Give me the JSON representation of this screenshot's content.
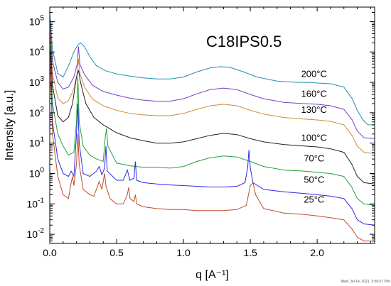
{
  "chart_data": {
    "type": "line",
    "title": "C18IPS0.5",
    "xlabel": "q [A⁻¹]",
    "ylabel": "Intensity [a.u.]",
    "xlim": [
      0,
      2.43
    ],
    "ylim": [
      0.005,
      300000
    ],
    "yscale": "log",
    "grid": false,
    "legend": "inline labels at right",
    "x_ticks": [
      {
        "v": 0,
        "label": "0.0"
      },
      {
        "v": 0.5,
        "label": "0.5"
      },
      {
        "v": 1.0,
        "label": "1.0"
      },
      {
        "v": 1.5,
        "label": "1.5"
      },
      {
        "v": 2.0,
        "label": "2.0"
      }
    ],
    "y_ticks": [
      {
        "exp": -2,
        "label": "10-2"
      },
      {
        "exp": -1,
        "label": "10-1"
      },
      {
        "exp": 0,
        "label": "10 0"
      },
      {
        "exp": 1,
        "label": "10 1"
      },
      {
        "exp": 2,
        "label": "10 2"
      },
      {
        "exp": 3,
        "label": "10 3"
      },
      {
        "exp": 4,
        "label": "10 4"
      },
      {
        "exp": 5,
        "label": "10 5"
      }
    ],
    "series": [
      {
        "name": "200°C",
        "color": "#1e90b0",
        "points": [
          [
            0.0,
            200000
          ],
          [
            0.02,
            12000
          ],
          [
            0.06,
            2000
          ],
          [
            0.1,
            1500
          ],
          [
            0.14,
            3500
          ],
          [
            0.18,
            10000
          ],
          [
            0.21,
            17000
          ],
          [
            0.23,
            20000
          ],
          [
            0.26,
            15000
          ],
          [
            0.3,
            7000
          ],
          [
            0.35,
            3500
          ],
          [
            0.42,
            2400
          ],
          [
            0.5,
            1900
          ],
          [
            0.6,
            1600
          ],
          [
            0.7,
            1400
          ],
          [
            0.8,
            1300
          ],
          [
            0.9,
            1300
          ],
          [
            1.0,
            1500
          ],
          [
            1.1,
            2200
          ],
          [
            1.2,
            3000
          ],
          [
            1.28,
            3300
          ],
          [
            1.35,
            3100
          ],
          [
            1.45,
            2200
          ],
          [
            1.55,
            1500
          ],
          [
            1.7,
            1100
          ],
          [
            1.85,
            1000
          ],
          [
            1.95,
            1000
          ],
          [
            2.0,
            950
          ],
          [
            2.1,
            900
          ],
          [
            2.2,
            700
          ],
          [
            2.26,
            300
          ],
          [
            2.3,
            120
          ],
          [
            2.34,
            60
          ],
          [
            2.38,
            40
          ],
          [
            2.43,
            40
          ]
        ]
      },
      {
        "name": "160°C",
        "color": "#7a3fc4",
        "points": [
          [
            0.0,
            100000
          ],
          [
            0.02,
            5000
          ],
          [
            0.06,
            1000
          ],
          [
            0.1,
            600
          ],
          [
            0.14,
            700
          ],
          [
            0.18,
            1500
          ],
          [
            0.205,
            4000
          ],
          [
            0.215,
            15000
          ],
          [
            0.225,
            4000
          ],
          [
            0.26,
            1800
          ],
          [
            0.32,
            800
          ],
          [
            0.4,
            500
          ],
          [
            0.5,
            380
          ],
          [
            0.6,
            300
          ],
          [
            0.7,
            260
          ],
          [
            0.8,
            240
          ],
          [
            0.9,
            240
          ],
          [
            1.0,
            290
          ],
          [
            1.1,
            420
          ],
          [
            1.2,
            580
          ],
          [
            1.3,
            650
          ],
          [
            1.4,
            580
          ],
          [
            1.5,
            400
          ],
          [
            1.6,
            290
          ],
          [
            1.75,
            220
          ],
          [
            1.9,
            200
          ],
          [
            2.0,
            190
          ],
          [
            2.1,
            170
          ],
          [
            2.2,
            130
          ],
          [
            2.26,
            60
          ],
          [
            2.3,
            25
          ],
          [
            2.35,
            15
          ],
          [
            2.43,
            14
          ]
        ]
      },
      {
        "name": "130°C",
        "color": "#d08a3a",
        "points": [
          [
            0.0,
            60000
          ],
          [
            0.02,
            2000
          ],
          [
            0.06,
            300
          ],
          [
            0.1,
            200
          ],
          [
            0.14,
            250
          ],
          [
            0.18,
            600
          ],
          [
            0.205,
            2000
          ],
          [
            0.215,
            6000
          ],
          [
            0.225,
            2000
          ],
          [
            0.26,
            700
          ],
          [
            0.32,
            280
          ],
          [
            0.4,
            170
          ],
          [
            0.5,
            120
          ],
          [
            0.6,
            95
          ],
          [
            0.7,
            85
          ],
          [
            0.8,
            80
          ],
          [
            0.9,
            80
          ],
          [
            1.0,
            95
          ],
          [
            1.1,
            130
          ],
          [
            1.2,
            170
          ],
          [
            1.3,
            190
          ],
          [
            1.4,
            170
          ],
          [
            1.5,
            120
          ],
          [
            1.6,
            90
          ],
          [
            1.75,
            70
          ],
          [
            1.9,
            62
          ],
          [
            2.0,
            58
          ],
          [
            2.1,
            52
          ],
          [
            2.2,
            40
          ],
          [
            2.26,
            18
          ],
          [
            2.3,
            8
          ],
          [
            2.35,
            5
          ],
          [
            2.43,
            4.5
          ]
        ]
      },
      {
        "name": "100°C",
        "color": "#222222",
        "points": [
          [
            0.0,
            40000
          ],
          [
            0.02,
            800
          ],
          [
            0.06,
            80
          ],
          [
            0.1,
            50
          ],
          [
            0.14,
            70
          ],
          [
            0.17,
            200
          ],
          [
            0.2,
            1500
          ],
          [
            0.215,
            2500
          ],
          [
            0.23,
            1000
          ],
          [
            0.27,
            200
          ],
          [
            0.33,
            70
          ],
          [
            0.4,
            40
          ],
          [
            0.5,
            22
          ],
          [
            0.6,
            15
          ],
          [
            0.7,
            12
          ],
          [
            0.8,
            10
          ],
          [
            0.9,
            10
          ],
          [
            1.0,
            11
          ],
          [
            1.1,
            14
          ],
          [
            1.2,
            18
          ],
          [
            1.3,
            21
          ],
          [
            1.4,
            19
          ],
          [
            1.5,
            14
          ],
          [
            1.6,
            11
          ],
          [
            1.75,
            9
          ],
          [
            1.9,
            8
          ],
          [
            2.0,
            7.5
          ],
          [
            2.1,
            6.5
          ],
          [
            2.2,
            5
          ],
          [
            2.26,
            2
          ],
          [
            2.3,
            0.8
          ],
          [
            2.35,
            0.5
          ],
          [
            2.43,
            0.45
          ]
        ]
      },
      {
        "name": "70°C",
        "color": "#1fa33a",
        "points": [
          [
            0.0,
            30000
          ],
          [
            0.02,
            200
          ],
          [
            0.06,
            20
          ],
          [
            0.1,
            8
          ],
          [
            0.14,
            4
          ],
          [
            0.18,
            5
          ],
          [
            0.2,
            50
          ],
          [
            0.21,
            1500
          ],
          [
            0.22,
            50
          ],
          [
            0.25,
            8
          ],
          [
            0.3,
            4
          ],
          [
            0.35,
            3
          ],
          [
            0.4,
            2.5
          ],
          [
            0.415,
            15
          ],
          [
            0.425,
            30
          ],
          [
            0.435,
            8
          ],
          [
            0.5,
            2.2
          ],
          [
            0.6,
            1.8
          ],
          [
            0.7,
            1.6
          ],
          [
            0.8,
            1.6
          ],
          [
            0.9,
            1.5
          ],
          [
            1.0,
            1.7
          ],
          [
            1.1,
            2.5
          ],
          [
            1.2,
            3.3
          ],
          [
            1.3,
            3.8
          ],
          [
            1.4,
            3.5
          ],
          [
            1.5,
            2.5
          ],
          [
            1.6,
            1.7
          ],
          [
            1.75,
            1.3
          ],
          [
            1.9,
            1.2
          ],
          [
            2.0,
            1.1
          ],
          [
            2.1,
            1.0
          ],
          [
            2.2,
            0.8
          ],
          [
            2.26,
            0.35
          ],
          [
            2.3,
            0.15
          ],
          [
            2.35,
            0.1
          ],
          [
            2.43,
            0.09
          ]
        ]
      },
      {
        "name": "50°C",
        "color": "#2a2ae0",
        "points": [
          [
            0.0,
            20000
          ],
          [
            0.02,
            50
          ],
          [
            0.06,
            3
          ],
          [
            0.1,
            1.0
          ],
          [
            0.14,
            0.8
          ],
          [
            0.16,
            1.2
          ],
          [
            0.18,
            0.8
          ],
          [
            0.2,
            20
          ],
          [
            0.21,
            200
          ],
          [
            0.22,
            10
          ],
          [
            0.25,
            1.0
          ],
          [
            0.3,
            0.8
          ],
          [
            0.35,
            1.2
          ],
          [
            0.37,
            1.7
          ],
          [
            0.39,
            0.9
          ],
          [
            0.41,
            1.5
          ],
          [
            0.42,
            8
          ],
          [
            0.43,
            1.2
          ],
          [
            0.5,
            0.6
          ],
          [
            0.55,
            0.6
          ],
          [
            0.58,
            1.3
          ],
          [
            0.6,
            0.6
          ],
          [
            0.63,
            0.7
          ],
          [
            0.64,
            2.5
          ],
          [
            0.65,
            0.6
          ],
          [
            0.7,
            0.5
          ],
          [
            0.8,
            0.45
          ],
          [
            0.9,
            0.42
          ],
          [
            1.0,
            0.4
          ],
          [
            1.1,
            0.38
          ],
          [
            1.2,
            0.36
          ],
          [
            1.3,
            0.36
          ],
          [
            1.4,
            0.38
          ],
          [
            1.46,
            0.5
          ],
          [
            1.48,
            1.5
          ],
          [
            1.49,
            6
          ],
          [
            1.5,
            1.5
          ],
          [
            1.52,
            0.5
          ],
          [
            1.6,
            0.3
          ],
          [
            1.75,
            0.25
          ],
          [
            1.9,
            0.22
          ],
          [
            2.0,
            0.2
          ],
          [
            2.1,
            0.18
          ],
          [
            2.2,
            0.15
          ],
          [
            2.26,
            0.07
          ],
          [
            2.3,
            0.03
          ],
          [
            2.35,
            0.022
          ],
          [
            2.43,
            0.02
          ]
        ]
      },
      {
        "name": "25°C",
        "color": "#c04a2a",
        "points": [
          [
            0.0,
            15000
          ],
          [
            0.02,
            20
          ],
          [
            0.06,
            0.8
          ],
          [
            0.1,
            0.2
          ],
          [
            0.14,
            0.15
          ],
          [
            0.16,
            0.5
          ],
          [
            0.17,
            0.8
          ],
          [
            0.18,
            0.4
          ],
          [
            0.2,
            2
          ],
          [
            0.21,
            20
          ],
          [
            0.22,
            2
          ],
          [
            0.25,
            0.3
          ],
          [
            0.3,
            0.2
          ],
          [
            0.33,
            0.18
          ],
          [
            0.37,
            0.55
          ],
          [
            0.39,
            0.3
          ],
          [
            0.41,
            1.0
          ],
          [
            0.42,
            0.4
          ],
          [
            0.45,
            0.15
          ],
          [
            0.5,
            0.1
          ],
          [
            0.55,
            0.1
          ],
          [
            0.58,
            0.2
          ],
          [
            0.59,
            0.35
          ],
          [
            0.6,
            0.15
          ],
          [
            0.63,
            0.12
          ],
          [
            0.64,
            0.2
          ],
          [
            0.65,
            0.1
          ],
          [
            0.7,
            0.08
          ],
          [
            0.8,
            0.07
          ],
          [
            0.9,
            0.065
          ],
          [
            1.0,
            0.065
          ],
          [
            1.1,
            0.06
          ],
          [
            1.2,
            0.06
          ],
          [
            1.3,
            0.06
          ],
          [
            1.4,
            0.065
          ],
          [
            1.47,
            0.09
          ],
          [
            1.5,
            0.4
          ],
          [
            1.52,
            0.5
          ],
          [
            1.54,
            0.2
          ],
          [
            1.6,
            0.07
          ],
          [
            1.75,
            0.05
          ],
          [
            1.9,
            0.045
          ],
          [
            2.0,
            0.04
          ],
          [
            2.1,
            0.035
          ],
          [
            2.2,
            0.03
          ],
          [
            2.26,
            0.015
          ],
          [
            2.3,
            0.008
          ],
          [
            2.35,
            0.006
          ],
          [
            2.43,
            0.006
          ]
        ]
      }
    ],
    "series_label_positions": [
      {
        "name": "200°C",
        "x": 1.88,
        "y": 1500
      },
      {
        "name": "160°C",
        "x": 1.88,
        "y": 330
      },
      {
        "name": "130°C",
        "x": 1.88,
        "y": 100
      },
      {
        "name": "100°C",
        "x": 1.88,
        "y": 12
      },
      {
        "name": "70°C",
        "x": 1.9,
        "y": 2.5
      },
      {
        "name": "50°C",
        "x": 1.9,
        "y": 0.5
      },
      {
        "name": "25°C",
        "x": 1.9,
        "y": 0.11
      }
    ]
  },
  "timestamp": "Wed, Jul 14, 2021, 3:56:57 PM"
}
